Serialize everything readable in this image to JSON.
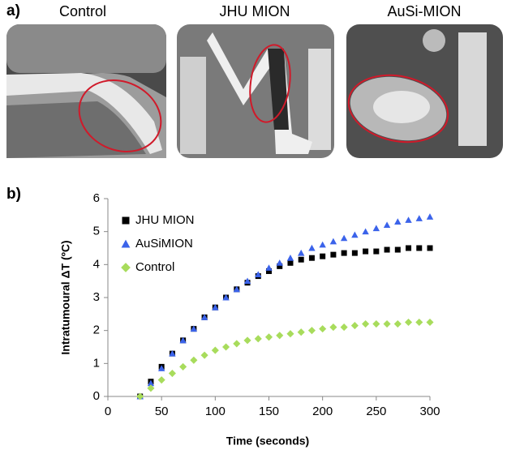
{
  "figure": {
    "panel_a_label": "a)",
    "panel_b_label": "b)",
    "images": [
      {
        "title": "Control"
      },
      {
        "title": "JHU MION"
      },
      {
        "title": "AuSi-MION"
      }
    ]
  },
  "chart_data": {
    "type": "scatter",
    "x_label": "Time (seconds)",
    "y_label": "Intratumoural ΔT (ºC)",
    "x": [
      30,
      40,
      50,
      60,
      70,
      80,
      90,
      100,
      110,
      120,
      130,
      140,
      150,
      160,
      170,
      180,
      190,
      200,
      210,
      220,
      230,
      240,
      250,
      260,
      270,
      280,
      290,
      300
    ],
    "series": [
      {
        "name": "JHU MION",
        "color": "#000000",
        "marker": "square",
        "values": [
          0,
          0.45,
          0.9,
          1.3,
          1.7,
          2.05,
          2.4,
          2.7,
          3.0,
          3.25,
          3.45,
          3.65,
          3.8,
          3.95,
          4.05,
          4.15,
          4.2,
          4.25,
          4.3,
          4.35,
          4.35,
          4.4,
          4.4,
          4.45,
          4.45,
          4.5,
          4.5,
          4.5
        ]
      },
      {
        "name": "AuSiMION",
        "color": "#3b63ea",
        "marker": "triangle",
        "values": [
          0,
          0.4,
          0.85,
          1.3,
          1.7,
          2.05,
          2.4,
          2.7,
          3.0,
          3.25,
          3.5,
          3.7,
          3.9,
          4.05,
          4.2,
          4.35,
          4.5,
          4.6,
          4.7,
          4.8,
          4.9,
          5.0,
          5.1,
          5.2,
          5.3,
          5.35,
          5.4,
          5.45
        ]
      },
      {
        "name": "Control",
        "color": "#a8dc5c",
        "marker": "diamond",
        "values": [
          0,
          0.25,
          0.5,
          0.7,
          0.9,
          1.1,
          1.25,
          1.4,
          1.5,
          1.6,
          1.7,
          1.75,
          1.8,
          1.85,
          1.9,
          1.95,
          2.0,
          2.05,
          2.1,
          2.1,
          2.15,
          2.2,
          2.2,
          2.2,
          2.2,
          2.25,
          2.25,
          2.25
        ]
      }
    ],
    "xlim": [
      0,
      300
    ],
    "xticks": [
      0,
      50,
      100,
      150,
      200,
      250,
      300
    ],
    "ylim": [
      0,
      6
    ],
    "yticks": [
      0,
      1,
      2,
      3,
      4,
      5,
      6
    ],
    "grid": false,
    "legend": "upper left"
  }
}
